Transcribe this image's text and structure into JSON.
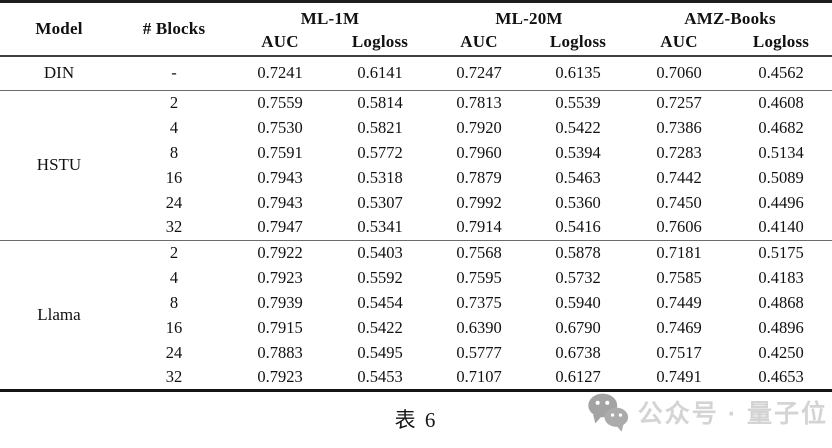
{
  "table": {
    "columns": {
      "model": "Model",
      "blocks": "# Blocks",
      "groups": [
        {
          "label": "ML-1M",
          "metrics": [
            "AUC",
            "Logloss"
          ]
        },
        {
          "label": "ML-20M",
          "metrics": [
            "AUC",
            "Logloss"
          ]
        },
        {
          "label": "AMZ-Books",
          "metrics": [
            "AUC",
            "Logloss"
          ]
        }
      ]
    },
    "sections": [
      {
        "model": "DIN",
        "rows": [
          {
            "blocks": "-",
            "values": [
              "0.7241",
              "0.6141",
              "0.7247",
              "0.6135",
              "0.7060",
              "0.4562"
            ]
          }
        ]
      },
      {
        "model": "HSTU",
        "rows": [
          {
            "blocks": "2",
            "values": [
              "0.7559",
              "0.5814",
              "0.7813",
              "0.5539",
              "0.7257",
              "0.4608"
            ]
          },
          {
            "blocks": "4",
            "values": [
              "0.7530",
              "0.5821",
              "0.7920",
              "0.5422",
              "0.7386",
              "0.4682"
            ]
          },
          {
            "blocks": "8",
            "values": [
              "0.7591",
              "0.5772",
              "0.7960",
              "0.5394",
              "0.7283",
              "0.5134"
            ]
          },
          {
            "blocks": "16",
            "values": [
              "0.7943",
              "0.5318",
              "0.7879",
              "0.5463",
              "0.7442",
              "0.5089"
            ]
          },
          {
            "blocks": "24",
            "values": [
              "0.7943",
              "0.5307",
              "0.7992",
              "0.5360",
              "0.7450",
              "0.4496"
            ]
          },
          {
            "blocks": "32",
            "values": [
              "0.7947",
              "0.5341",
              "0.7914",
              "0.5416",
              "0.7606",
              "0.4140"
            ]
          }
        ]
      },
      {
        "model": "Llama",
        "rows": [
          {
            "blocks": "2",
            "values": [
              "0.7922",
              "0.5403",
              "0.7568",
              "0.5878",
              "0.7181",
              "0.5175"
            ]
          },
          {
            "blocks": "4",
            "values": [
              "0.7923",
              "0.5592",
              "0.7595",
              "0.5732",
              "0.7585",
              "0.4183"
            ]
          },
          {
            "blocks": "8",
            "values": [
              "0.7939",
              "0.5454",
              "0.7375",
              "0.5940",
              "0.7449",
              "0.4868"
            ]
          },
          {
            "blocks": "16",
            "values": [
              "0.7915",
              "0.5422",
              "0.6390",
              "0.6790",
              "0.7469",
              "0.4896"
            ]
          },
          {
            "blocks": "24",
            "values": [
              "0.7883",
              "0.5495",
              "0.5777",
              "0.6738",
              "0.7517",
              "0.4250"
            ]
          },
          {
            "blocks": "32",
            "values": [
              "0.7923",
              "0.5453",
              "0.7107",
              "0.6127",
              "0.7491",
              "0.4653"
            ]
          }
        ]
      }
    ]
  },
  "caption": {
    "text": "表 6"
  },
  "watermark": {
    "text": "公众号 · 量子位",
    "icon": "wechat-icon",
    "icon_color": "#a3a3a3",
    "text_color": "#d4d4d4"
  },
  "colors": {
    "rule_heavy": "#1d1d1d",
    "rule_header": "#404040",
    "rule_section": "#6b6b6b",
    "text": "#111111",
    "background": "#ffffff"
  }
}
